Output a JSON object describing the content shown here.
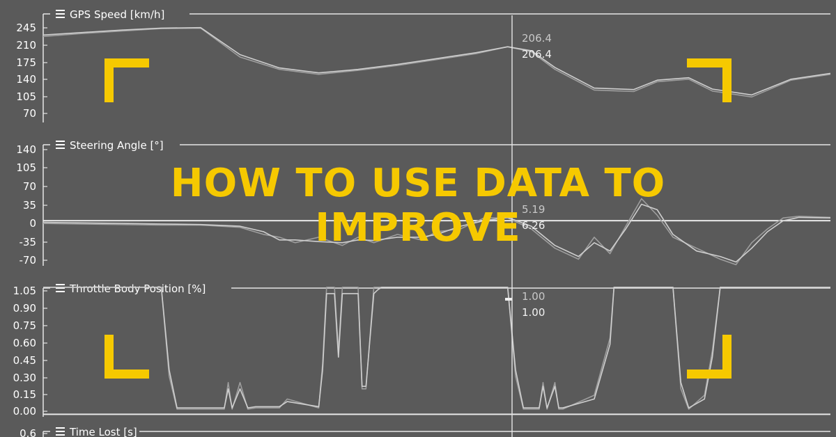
{
  "headline": [
    "HOW TO USE DATA TO",
    "IMPROVE"
  ],
  "colors": {
    "background": "#5a5a5a",
    "accent": "#f6c900",
    "trace_a": "#cfcfcf",
    "trace_b": "#9e9e9e",
    "axis": "#e6e6e6"
  },
  "menu_icon": "hamburger-icon",
  "chart_data": [
    {
      "type": "line",
      "title": "GPS Speed [km/h]",
      "yticks": [
        245,
        210,
        175,
        140,
        105,
        70
      ],
      "ylim": [
        52,
        270
      ],
      "xlim": [
        0,
        1
      ],
      "cursor_x": 0.59,
      "readouts": [
        "206.4",
        "206.4"
      ],
      "series": [
        {
          "x": [
            0,
            0.05,
            0.1,
            0.15,
            0.2,
            0.25,
            0.3,
            0.35,
            0.4,
            0.45,
            0.5,
            0.55,
            0.59,
            0.62,
            0.65,
            0.7,
            0.75,
            0.78,
            0.82,
            0.85,
            0.9,
            0.95,
            1.0
          ],
          "y": [
            227,
            233,
            238,
            243,
            244,
            185,
            160,
            150,
            158,
            168,
            180,
            192,
            206,
            196,
            160,
            118,
            115,
            135,
            140,
            116,
            104,
            138,
            150
          ]
        },
        {
          "x": [
            0,
            0.05,
            0.1,
            0.15,
            0.2,
            0.25,
            0.3,
            0.35,
            0.4,
            0.45,
            0.5,
            0.55,
            0.59,
            0.62,
            0.65,
            0.7,
            0.75,
            0.78,
            0.82,
            0.85,
            0.9,
            0.95,
            1.0
          ],
          "y": [
            230,
            235,
            240,
            244,
            245,
            190,
            163,
            153,
            160,
            170,
            182,
            194,
            206,
            198,
            164,
            122,
            119,
            138,
            143,
            120,
            108,
            140,
            152
          ]
        }
      ]
    },
    {
      "type": "line",
      "title": "Steering Angle [°]",
      "yticks": [
        140,
        105,
        70,
        35,
        0,
        -35,
        -70
      ],
      "ylim": [
        -82,
        152
      ],
      "xlim": [
        0,
        1
      ],
      "cursor_x": 0.59,
      "readouts": [
        "5.19",
        "6.26"
      ],
      "series": [
        {
          "x": [
            0,
            0.05,
            0.1,
            0.15,
            0.2,
            0.25,
            0.28,
            0.3,
            0.32,
            0.35,
            0.38,
            0.4,
            0.42,
            0.45,
            0.48,
            0.5,
            0.53,
            0.56,
            0.59,
            0.62,
            0.65,
            0.68,
            0.7,
            0.72,
            0.74,
            0.76,
            0.78,
            0.8,
            0.83,
            0.86,
            0.88,
            0.9,
            0.92,
            0.94,
            0.96,
            1.0
          ],
          "y": [
            -5,
            -6,
            -7,
            -8,
            -8,
            -12,
            -25,
            -30,
            -40,
            -30,
            -45,
            -30,
            -40,
            -25,
            -35,
            -20,
            -15,
            5,
            5,
            -15,
            -50,
            -70,
            -30,
            -60,
            -10,
            40,
            10,
            -30,
            -50,
            -70,
            -80,
            -40,
            -15,
            5,
            8,
            6
          ]
        },
        {
          "x": [
            0,
            0.05,
            0.1,
            0.15,
            0.2,
            0.25,
            0.28,
            0.3,
            0.32,
            0.35,
            0.38,
            0.4,
            0.42,
            0.45,
            0.48,
            0.5,
            0.53,
            0.56,
            0.59,
            0.62,
            0.65,
            0.68,
            0.7,
            0.72,
            0.74,
            0.76,
            0.78,
            0.8,
            0.83,
            0.86,
            0.88,
            0.9,
            0.92,
            0.94,
            0.96,
            1.0
          ],
          "y": [
            -3,
            -4,
            -5,
            -6,
            -7,
            -10,
            -20,
            -35,
            -35,
            -38,
            -40,
            -35,
            -36,
            -30,
            -30,
            -25,
            -10,
            0,
            6,
            -10,
            -45,
            -65,
            -40,
            -55,
            -15,
            30,
            20,
            -25,
            -55,
            -65,
            -75,
            -50,
            -20,
            0,
            6,
            5
          ]
        }
      ]
    },
    {
      "type": "line",
      "title": "Throttle Body Position [%]",
      "yticks": [
        "1.05",
        "0.90",
        "0.75",
        "0.60",
        "0.45",
        "0.30",
        "0.15",
        "0.00"
      ],
      "ylim": [
        -0.02,
        1.07
      ],
      "xlim": [
        0,
        1
      ],
      "cursor_x": 0.59,
      "readouts": [
        "1.00",
        "1.00"
      ],
      "series": [
        {
          "x": [
            0,
            0.15,
            0.16,
            0.17,
            0.23,
            0.235,
            0.24,
            0.25,
            0.26,
            0.27,
            0.3,
            0.31,
            0.35,
            0.355,
            0.36,
            0.37,
            0.375,
            0.38,
            0.4,
            0.405,
            0.41,
            0.42,
            0.425,
            0.43,
            0.59,
            0.6,
            0.61,
            0.63,
            0.635,
            0.64,
            0.65,
            0.655,
            0.66,
            0.7,
            0.72,
            0.725,
            0.8,
            0.81,
            0.82,
            0.84,
            0.85,
            0.86,
            1.0
          ],
          "y": [
            1,
            1,
            0.3,
            0.04,
            0.04,
            0.25,
            0.04,
            0.25,
            0.04,
            0.05,
            0.05,
            0.12,
            0.05,
            0.4,
            1,
            1,
            0.5,
            1,
            1,
            0.2,
            0.2,
            1,
            1,
            1,
            1,
            0.3,
            0.04,
            0.04,
            0.25,
            0.04,
            0.25,
            0.04,
            0.04,
            0.15,
            0.6,
            1,
            1,
            0.2,
            0.04,
            0.15,
            0.5,
            1,
            1
          ]
        },
        {
          "x": [
            0,
            0.15,
            0.16,
            0.17,
            0.23,
            0.235,
            0.24,
            0.25,
            0.26,
            0.27,
            0.3,
            0.31,
            0.35,
            0.355,
            0.36,
            0.37,
            0.375,
            0.38,
            0.4,
            0.405,
            0.41,
            0.42,
            0.425,
            0.43,
            0.59,
            0.6,
            0.61,
            0.63,
            0.635,
            0.64,
            0.65,
            0.655,
            0.66,
            0.7,
            0.72,
            0.725,
            0.8,
            0.81,
            0.82,
            0.84,
            0.85,
            0.86,
            1.0
          ],
          "y": [
            1,
            1,
            0.35,
            0.05,
            0.05,
            0.2,
            0.05,
            0.2,
            0.05,
            0.06,
            0.06,
            0.1,
            0.06,
            0.35,
            0.95,
            0.95,
            0.45,
            0.95,
            0.95,
            0.22,
            0.22,
            0.95,
            0.98,
            1,
            1,
            0.35,
            0.05,
            0.05,
            0.22,
            0.05,
            0.22,
            0.05,
            0.05,
            0.12,
            0.55,
            1,
            1,
            0.25,
            0.05,
            0.12,
            0.45,
            1,
            1
          ]
        }
      ]
    },
    {
      "type": "line",
      "title": "Time Lost [s]",
      "yticks": [
        "0.6"
      ],
      "series": []
    }
  ]
}
